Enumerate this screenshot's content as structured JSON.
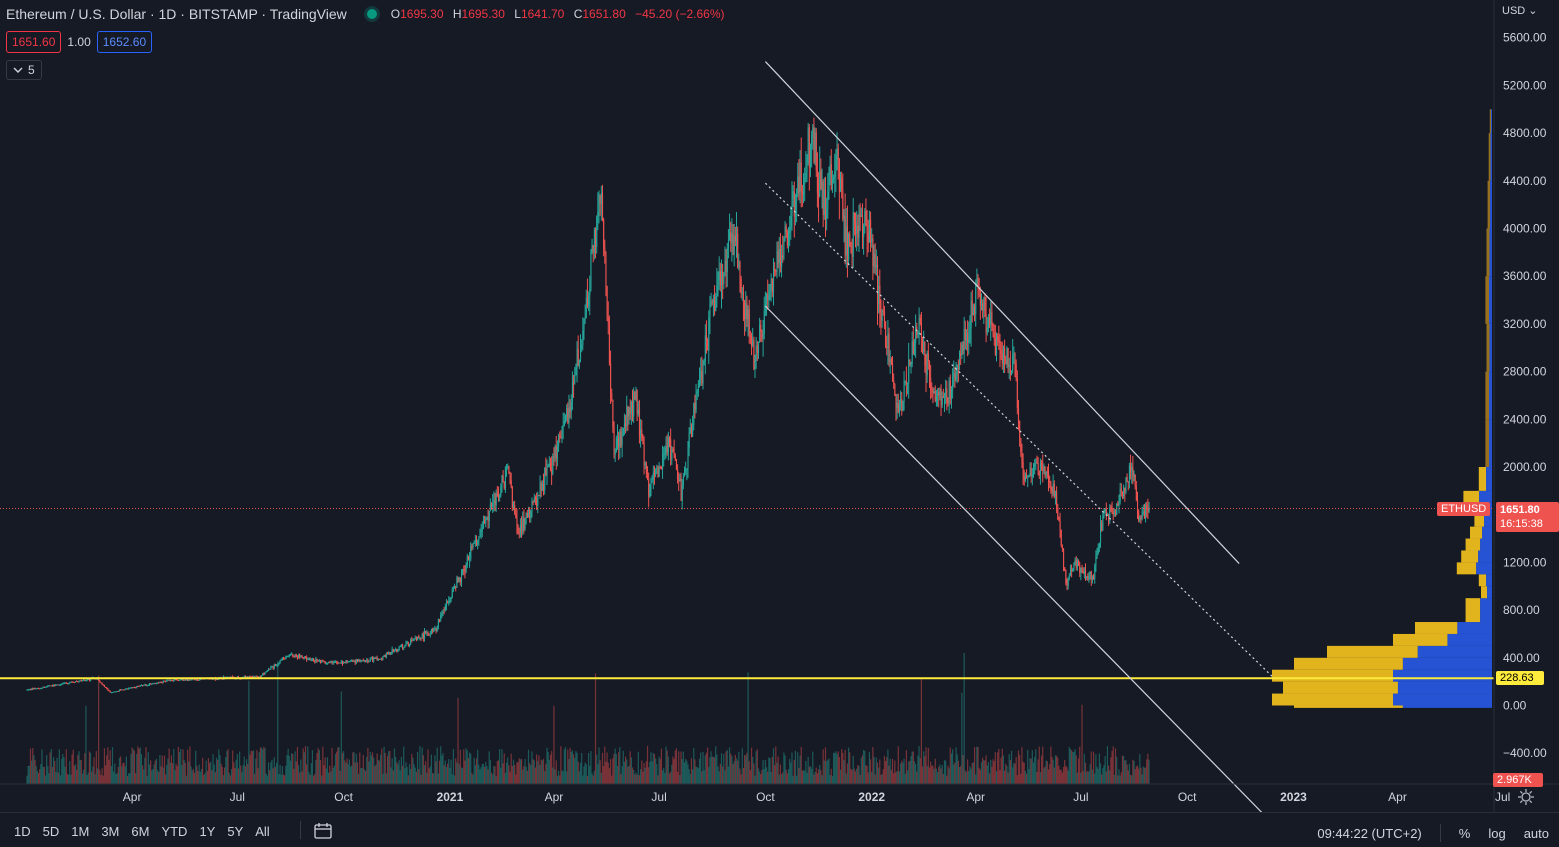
{
  "header": {
    "title": "Ethereum / U.S. Dollar · 1D · BITSTAMP · TradingView",
    "ohlc": {
      "o_label": "O",
      "o": "1695.30",
      "h_label": "H",
      "h": "1695.30",
      "l_label": "L",
      "l": "1641.70",
      "c_label": "C",
      "c": "1651.80",
      "change": "−45.20 (−2.66%)"
    },
    "sell_price": "1651.60",
    "spread": "1.00",
    "buy_price": "1652.60",
    "indicators_label": "5"
  },
  "price_axis": {
    "currency": "USD",
    "ticks": [
      "5600.00",
      "5200.00",
      "4800.00",
      "4400.00",
      "4000.00",
      "3600.00",
      "3200.00",
      "2800.00",
      "2400.00",
      "2000.00",
      "1200.00",
      "800.00",
      "400.00",
      "0.00",
      "−400.00"
    ],
    "last_price": "1651.80",
    "countdown": "16:15:38",
    "symbol_label": "ETHUSD",
    "hline_price": "228.63",
    "volume_label": "2.967K"
  },
  "time_axis": {
    "ticks": [
      "Apr",
      "Jul",
      "Oct",
      "2021",
      "Apr",
      "Jul",
      "Oct",
      "2022",
      "Apr",
      "Jul",
      "Oct",
      "2023",
      "Apr",
      "Jul"
    ]
  },
  "bottom": {
    "ranges": [
      "1D",
      "5D",
      "1M",
      "3M",
      "6M",
      "YTD",
      "1Y",
      "5Y",
      "All"
    ],
    "clock": "09:44:22 (UTC+2)",
    "percent": "%",
    "log": "log",
    "auto": "auto"
  },
  "colors": {
    "background": "#161a25",
    "up": "#26a69a",
    "down": "#ef5350",
    "hline": "#ffeb3b",
    "channel": "#d1d4dc"
  },
  "chart_data": {
    "type": "candlestick",
    "symbol": "ETHUSD",
    "interval": "1D",
    "log_scale": false,
    "x_range": [
      "2020-01-01",
      "2023-08-31"
    ],
    "y_range": [
      -600,
      5800
    ],
    "price_points": [
      {
        "x": "2020-01-01",
        "y": 130
      },
      {
        "x": "2020-03-01",
        "y": 230
      },
      {
        "x": "2020-03-13",
        "y": 110
      },
      {
        "x": "2020-05-01",
        "y": 210
      },
      {
        "x": "2020-07-20",
        "y": 240
      },
      {
        "x": "2020-08-15",
        "y": 430
      },
      {
        "x": "2020-09-15",
        "y": 360
      },
      {
        "x": "2020-11-01",
        "y": 390
      },
      {
        "x": "2020-12-20",
        "y": 650
      },
      {
        "x": "2021-01-15",
        "y": 1200
      },
      {
        "x": "2021-02-20",
        "y": 1950
      },
      {
        "x": "2021-03-01",
        "y": 1450
      },
      {
        "x": "2021-03-20",
        "y": 1800
      },
      {
        "x": "2021-04-15",
        "y": 2450
      },
      {
        "x": "2021-05-12",
        "y": 4300
      },
      {
        "x": "2021-05-23",
        "y": 2100
      },
      {
        "x": "2021-06-10",
        "y": 2600
      },
      {
        "x": "2021-06-22",
        "y": 1800
      },
      {
        "x": "2021-07-10",
        "y": 2200
      },
      {
        "x": "2021-07-20",
        "y": 1800
      },
      {
        "x": "2021-08-15",
        "y": 3300
      },
      {
        "x": "2021-09-03",
        "y": 3950
      },
      {
        "x": "2021-09-21",
        "y": 2900
      },
      {
        "x": "2021-10-05",
        "y": 3500
      },
      {
        "x": "2021-10-25",
        "y": 4200
      },
      {
        "x": "2021-11-10",
        "y": 4800
      },
      {
        "x": "2021-11-20",
        "y": 4150
      },
      {
        "x": "2021-12-01",
        "y": 4600
      },
      {
        "x": "2021-12-10",
        "y": 3900
      },
      {
        "x": "2021-12-28",
        "y": 4050
      },
      {
        "x": "2022-01-05",
        "y": 3600
      },
      {
        "x": "2022-01-24",
        "y": 2400
      },
      {
        "x": "2022-02-10",
        "y": 3200
      },
      {
        "x": "2022-02-25",
        "y": 2600
      },
      {
        "x": "2022-03-10",
        "y": 2600
      },
      {
        "x": "2022-04-03",
        "y": 3500
      },
      {
        "x": "2022-04-20",
        "y": 3000
      },
      {
        "x": "2022-05-05",
        "y": 2850
      },
      {
        "x": "2022-05-12",
        "y": 1900
      },
      {
        "x": "2022-05-30",
        "y": 2000
      },
      {
        "x": "2022-06-10",
        "y": 1700
      },
      {
        "x": "2022-06-18",
        "y": 1000
      },
      {
        "x": "2022-06-25",
        "y": 1200
      },
      {
        "x": "2022-07-12",
        "y": 1050
      },
      {
        "x": "2022-07-20",
        "y": 1600
      },
      {
        "x": "2022-08-01",
        "y": 1650
      },
      {
        "x": "2022-08-14",
        "y": 2000
      },
      {
        "x": "2022-08-20",
        "y": 1600
      },
      {
        "x": "2022-08-29",
        "y": 1652
      }
    ],
    "annotations": {
      "horizontal_line": 228.63,
      "current_price": 1651.8,
      "channel_upper": [
        {
          "x": "2021-10-01",
          "y": 5400
        },
        {
          "x": "2022-11-15",
          "y": 1190
        }
      ],
      "channel_lower": [
        {
          "x": "2021-10-01",
          "y": 3350
        },
        {
          "x": "2022-12-15",
          "y": -1000
        }
      ],
      "channel_mid": [
        {
          "x": "2021-10-01",
          "y": 4380
        },
        {
          "x": "2022-12-15",
          "y": 230
        }
      ]
    }
  }
}
